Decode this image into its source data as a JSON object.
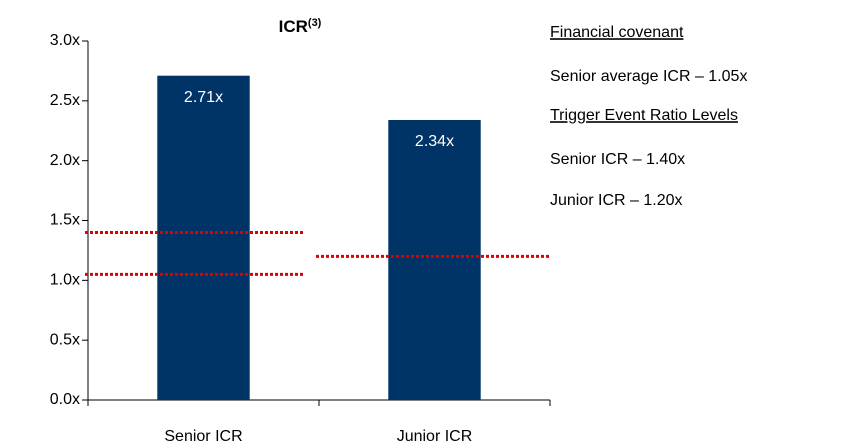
{
  "chart_data": {
    "type": "bar",
    "title": "ICR",
    "title_superscript": "(3)",
    "categories": [
      "Senior ICR",
      "Junior ICR"
    ],
    "values": [
      2.71,
      2.34
    ],
    "value_labels": [
      "2.71x",
      "2.34x"
    ],
    "color": "#003366",
    "ylim": [
      0,
      3
    ],
    "yticks": [
      {
        "value": 0,
        "label": "0.0x"
      },
      {
        "value": 0.5,
        "label": "0.5x"
      },
      {
        "value": 1,
        "label": "1.0x"
      },
      {
        "value": 1.5,
        "label": "1.5x"
      },
      {
        "value": 2,
        "label": "2.0x"
      },
      {
        "value": 2.5,
        "label": "2.5x"
      },
      {
        "value": 3,
        "label": "3.0x"
      }
    ],
    "grid": false,
    "reference_lines": [
      {
        "category": "Senior ICR",
        "value": 1.05
      },
      {
        "category": "Senior ICR",
        "value": 1.4
      },
      {
        "category": "Junior ICR",
        "value": 1.2
      }
    ],
    "reference_line_color": "#e00000",
    "annotations": [
      {
        "text": "Financial covenant",
        "underline": true
      },
      {
        "text": "Senior average ICR – 1.05x",
        "underline": false
      },
      {
        "text": "Trigger Event Ratio Levels",
        "underline": true
      },
      {
        "text": "Senior ICR – 1.40x",
        "underline": false
      },
      {
        "text": "Junior ICR – 1.20x",
        "underline": false
      }
    ]
  }
}
